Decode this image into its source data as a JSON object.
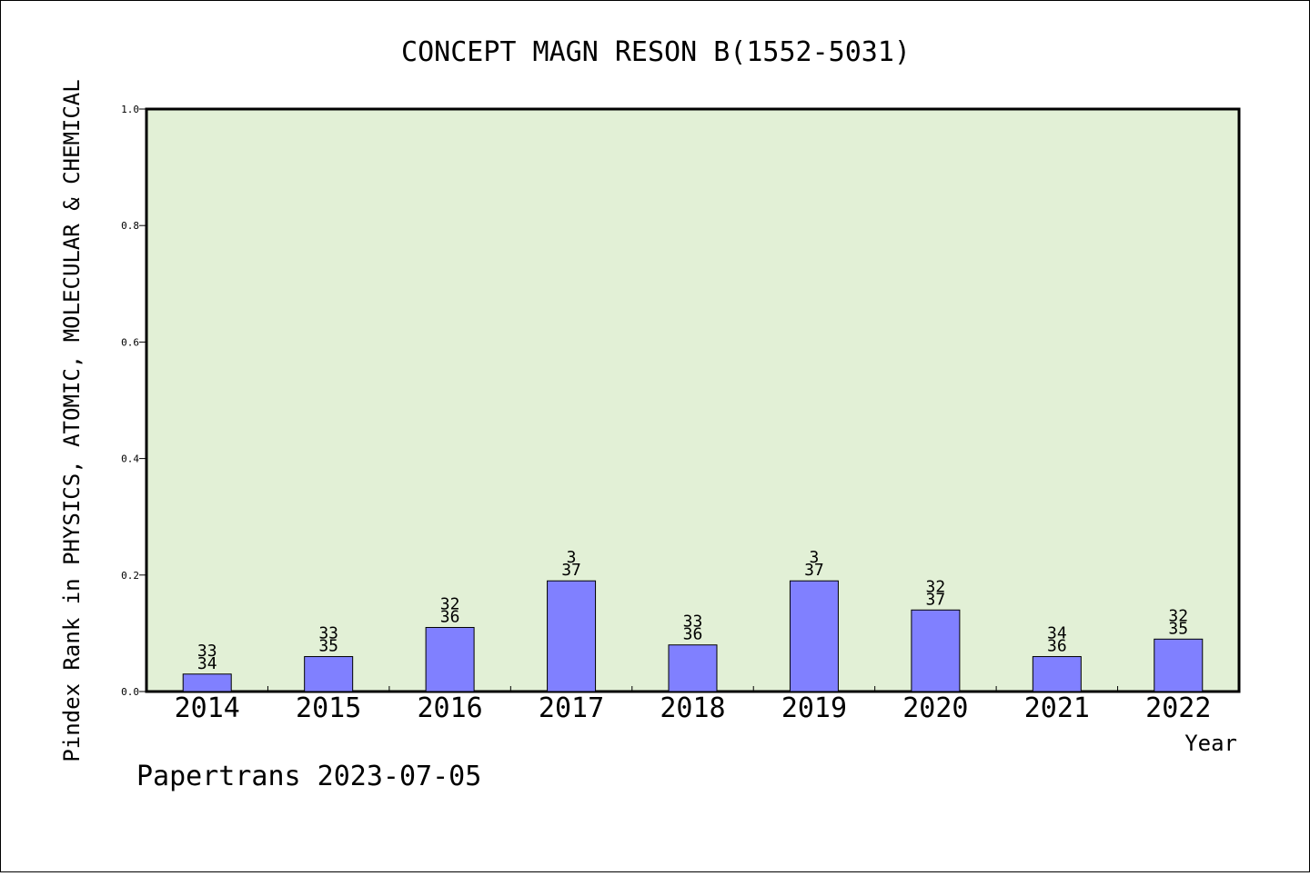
{
  "chart_data": {
    "type": "bar",
    "title": "CONCEPT MAGN RESON B(1552-5031)",
    "ylabel": "Pindex Rank in PHYSICS, ATOMIC, MOLECULAR & CHEMICAL",
    "xlabel": "Year",
    "ylim": [
      0,
      1.0
    ],
    "yticks": [
      "0.0",
      "0.2",
      "0.4",
      "0.6",
      "0.8",
      "1.0"
    ],
    "categories": [
      "2014",
      "2015",
      "2016",
      "2017",
      "2018",
      "2019",
      "2020",
      "2021",
      "2022"
    ],
    "values": [
      0.03,
      0.06,
      0.11,
      0.19,
      0.08,
      0.19,
      0.14,
      0.06,
      0.09
    ],
    "rank_labels": [
      [
        "33",
        "34"
      ],
      [
        "33",
        "35"
      ],
      [
        "32",
        "36"
      ],
      [
        "3",
        "37"
      ],
      [
        "33",
        "36"
      ],
      [
        "3",
        "37"
      ],
      [
        "32",
        "37"
      ],
      [
        "34",
        "36"
      ],
      [
        "32",
        "35"
      ]
    ],
    "grid": false,
    "colors": {
      "plot_background": "#e2f0d6",
      "bar_fill": "#8080ff",
      "bar_stroke": "#000000"
    }
  },
  "footer": {
    "credit": "Papertrans 2023-07-05"
  }
}
